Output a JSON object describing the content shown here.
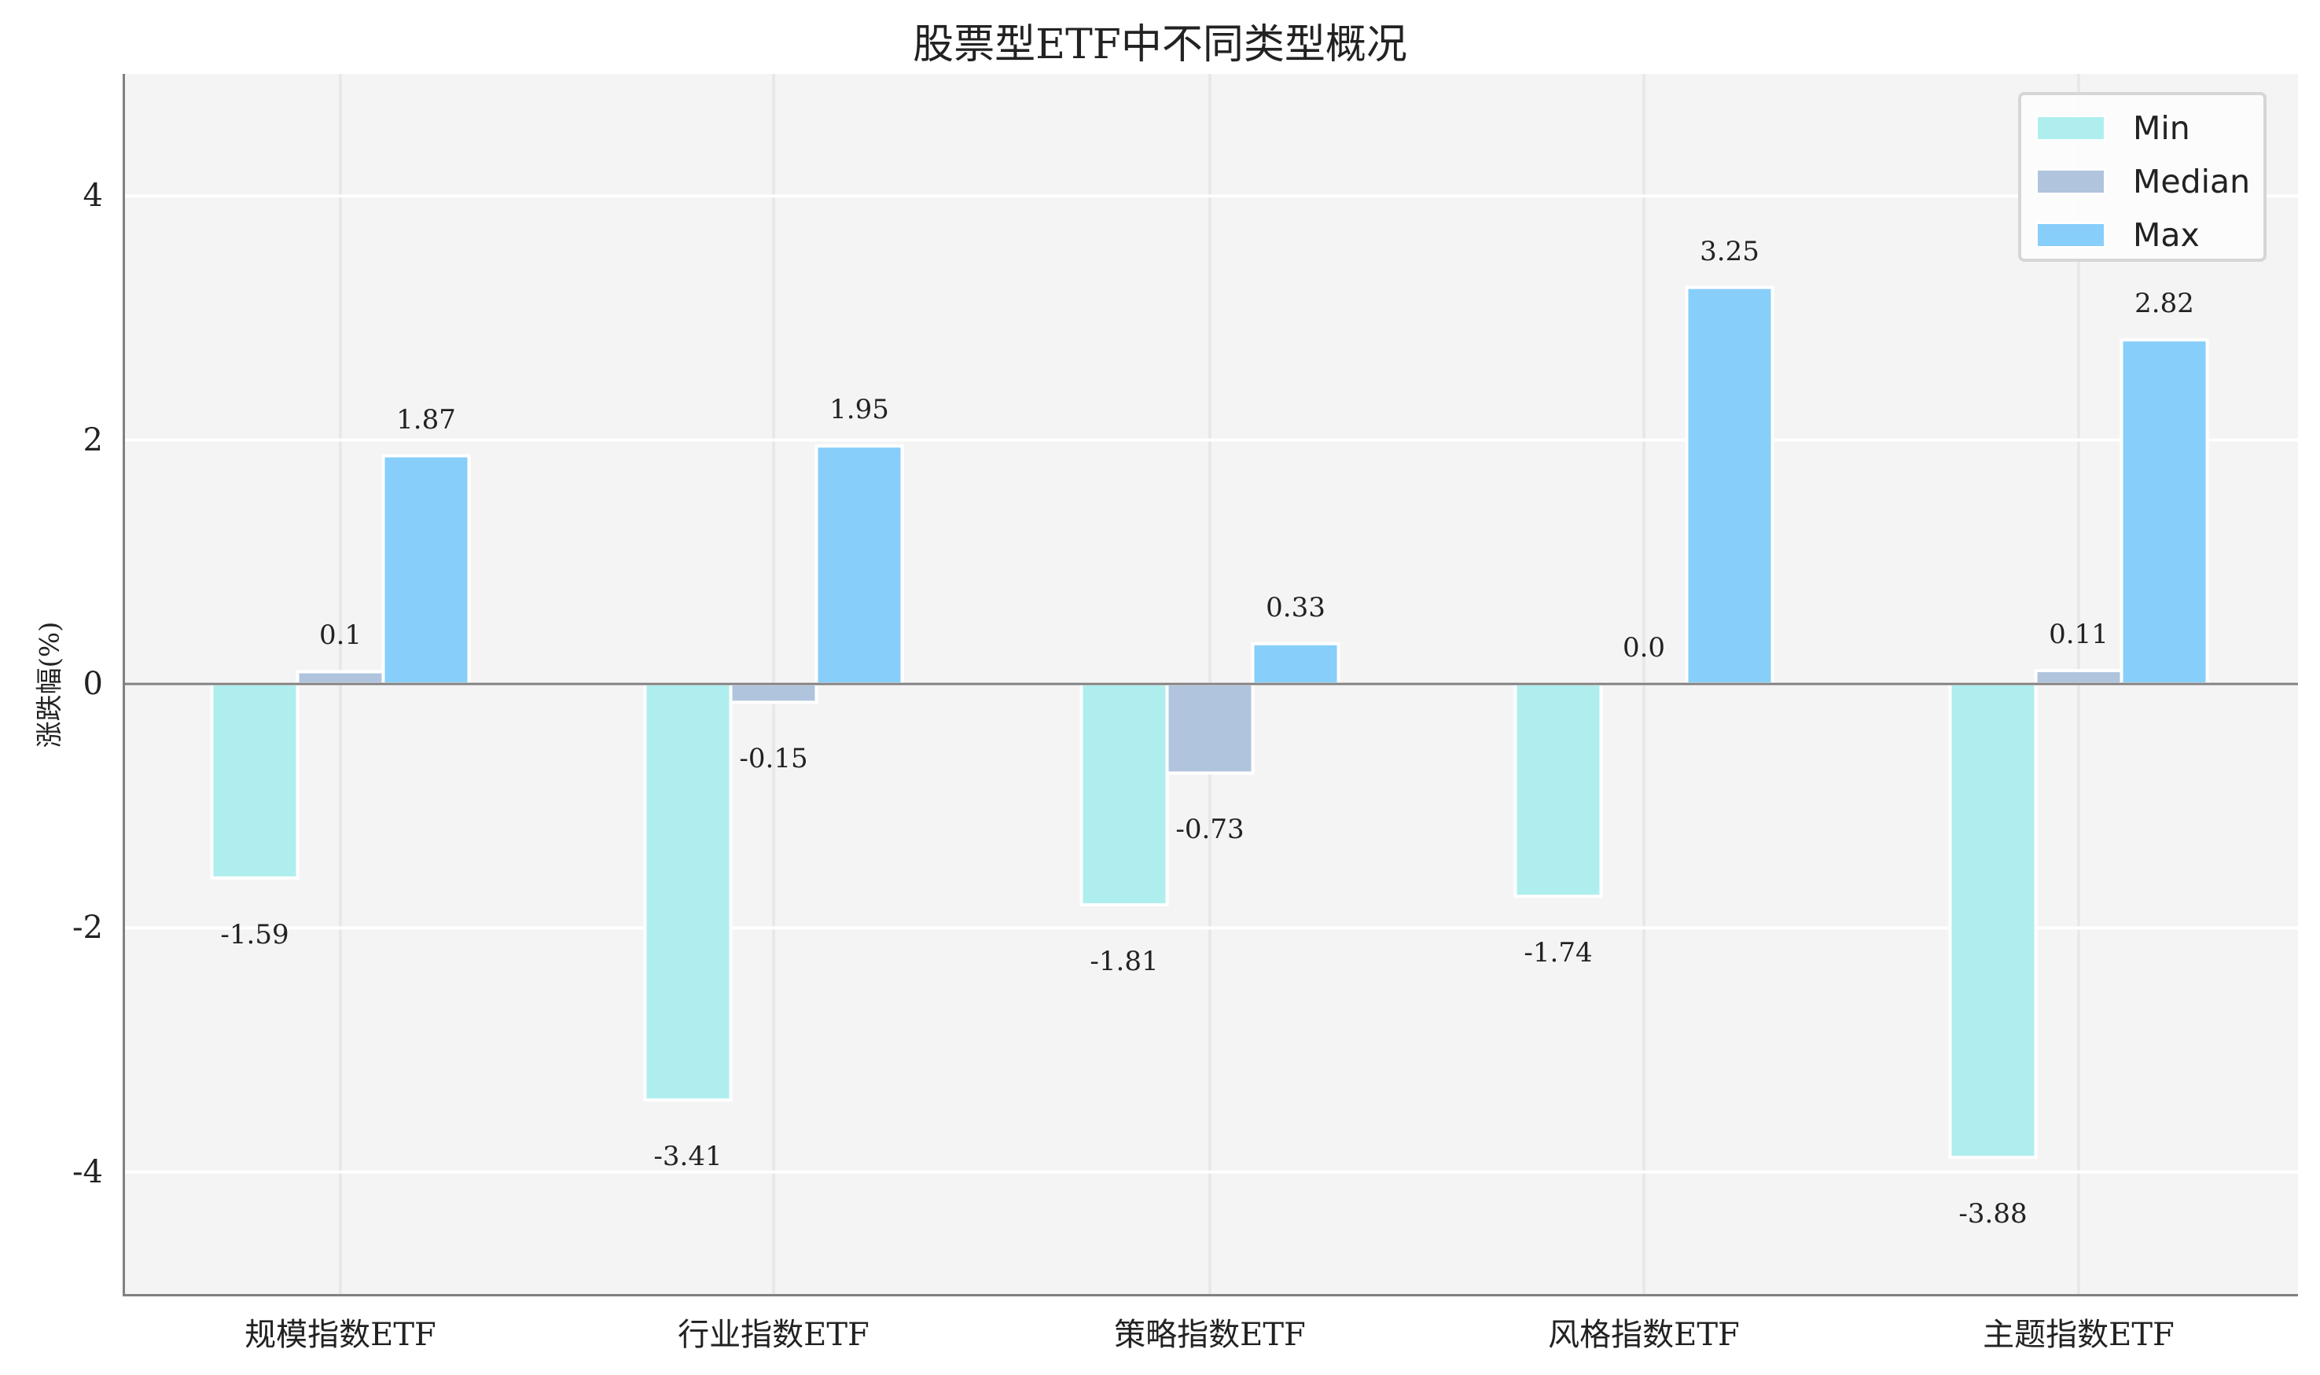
{
  "chart_data": {
    "type": "bar",
    "title": "股票型ETF中不同类型概况",
    "xlabel": "",
    "ylabel": "涨跌幅(%)",
    "ylim": [
      -5,
      5
    ],
    "yticks": [
      -4,
      -2,
      0,
      2,
      4
    ],
    "ytick_labels": [
      "-4",
      "-2",
      "0",
      "2",
      "4"
    ],
    "grid": true,
    "legend_position": "upper right",
    "categories": [
      "规模指数ETF",
      "行业指数ETF",
      "策略指数ETF",
      "风格指数ETF",
      "主题指数ETF"
    ],
    "series": [
      {
        "name": "Min",
        "color": "#afeeee",
        "values": [
          -1.59,
          -3.41,
          -1.81,
          -1.74,
          -3.88
        ],
        "labels": [
          "-1.59",
          "-3.41",
          "-1.81",
          "-1.74",
          "-3.88"
        ]
      },
      {
        "name": "Median",
        "color": "#b0c4de",
        "values": [
          0.1,
          -0.15,
          -0.73,
          0.0,
          0.11
        ],
        "labels": [
          "0.1",
          "-0.15",
          "-0.73",
          "0.0",
          "0.11"
        ]
      },
      {
        "name": "Max",
        "color": "#87cefa",
        "values": [
          1.87,
          1.95,
          0.33,
          3.25,
          2.82
        ],
        "labels": [
          "1.87",
          "1.95",
          "0.33",
          "3.25",
          "2.82"
        ]
      }
    ]
  },
  "colors": {
    "plot_background": "#f4f4f4",
    "grid": "#ffffff",
    "axis": "#808080",
    "zero_line": "#808080"
  }
}
